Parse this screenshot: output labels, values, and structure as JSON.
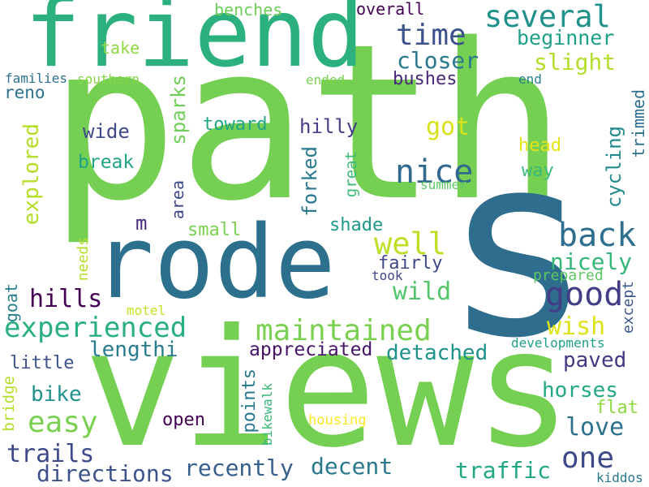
{
  "words": {
    "path": {
      "text": "path",
      "color": "#74cf52"
    },
    "views": {
      "text": "views",
      "color": "#74cf52"
    },
    "friend": {
      "text": "friend",
      "color": "#2cb17e"
    },
    "s": {
      "text": "s",
      "color": "#2e6d8e"
    },
    "rode": {
      "text": "rode",
      "color": "#2d708e"
    },
    "several": {
      "text": "several",
      "color": "#21918c"
    },
    "time": {
      "text": "time",
      "color": "#3b528b"
    },
    "beginner": {
      "text": "beginner",
      "color": "#1fa088"
    },
    "closer": {
      "text": "closer",
      "color": "#2a788e"
    },
    "slight": {
      "text": "slight",
      "color": "#b5de2b"
    },
    "bushes": {
      "text": "bushes",
      "color": "#482878"
    },
    "nice": {
      "text": "nice",
      "color": "#31688e"
    },
    "back": {
      "text": "back",
      "color": "#2e6e8e"
    },
    "good": {
      "text": "good",
      "color": "#433e85"
    },
    "well": {
      "text": "well",
      "color": "#bddf26"
    },
    "maintained": {
      "text": "maintained",
      "color": "#7ad151"
    },
    "experienced": {
      "text": "experienced",
      "color": "#2ab07f"
    },
    "easy": {
      "text": "easy",
      "color": "#7ad151"
    },
    "trails": {
      "text": "trails",
      "color": "#3e4989"
    },
    "directions": {
      "text": "directions",
      "color": "#3b528b"
    },
    "recently": {
      "text": "recently",
      "color": "#355f8d"
    },
    "decent": {
      "text": "decent",
      "color": "#2a788e"
    },
    "traffic": {
      "text": "traffic",
      "color": "#22a785"
    },
    "one": {
      "text": "one",
      "color": "#3e4989"
    },
    "love": {
      "text": "love",
      "color": "#2c728e"
    },
    "paved": {
      "text": "paved",
      "color": "#453781"
    },
    "detached": {
      "text": "detached",
      "color": "#20928c"
    },
    "wish": {
      "text": "wish",
      "color": "#dde318"
    },
    "nicely": {
      "text": "nicely",
      "color": "#35b779"
    },
    "wild": {
      "text": "wild",
      "color": "#52c569"
    },
    "fairly": {
      "text": "fairly",
      "color": "#3e4989"
    },
    "took": {
      "text": "took",
      "color": "#404688"
    },
    "prepared": {
      "text": "prepared",
      "color": "#5ec962"
    },
    "horses": {
      "text": "horses",
      "color": "#22a884"
    },
    "flat": {
      "text": "flat",
      "color": "#8fd744"
    },
    "bike": {
      "text": "bike",
      "color": "#21918c"
    },
    "hills": {
      "text": "hills",
      "color": "#440154"
    },
    "lengthi": {
      "text": "lengthi",
      "color": "#287c8e"
    },
    "appreciated": {
      "text": "appreciated",
      "color": "#481467"
    },
    "open": {
      "text": "open",
      "color": "#440154"
    },
    "little": {
      "text": "little",
      "color": "#3b528b"
    },
    "hilly": {
      "text": "hilly",
      "color": "#433e85"
    },
    "toward": {
      "text": "toward",
      "color": "#21a585"
    },
    "wide": {
      "text": "wide",
      "color": "#3e4a89"
    },
    "break": {
      "text": "break",
      "color": "#20a386"
    },
    "got": {
      "text": "got",
      "color": "#d8e219"
    },
    "head": {
      "text": "head",
      "color": "#e5e419"
    },
    "way": {
      "text": "way",
      "color": "#3aba76"
    },
    "shade": {
      "text": "shade",
      "color": "#1f998a"
    },
    "small": {
      "text": "small",
      "color": "#7ad151"
    },
    "m": {
      "text": "m",
      "color": "#472c7a"
    },
    "overall": {
      "text": "overall",
      "color": "#440154"
    },
    "benches": {
      "text": "benches",
      "color": "#6ccd5a"
    },
    "take": {
      "text": "take",
      "color": "#8fd744"
    },
    "families": {
      "text": "families",
      "color": "#2d708e"
    },
    "southern": {
      "text": "southern",
      "color": "#86d549"
    },
    "reno": {
      "text": "reno",
      "color": "#2c728e"
    },
    "ended": {
      "text": "ended",
      "color": "#7ad151"
    },
    "end": {
      "text": "end",
      "color": "#26828e"
    },
    "summer": {
      "text": "summer",
      "color": "#5ec962"
    },
    "motel": {
      "text": "motel",
      "color": "#c8e020"
    },
    "developments": {
      "text": "developments",
      "color": "#1fa088"
    },
    "housing": {
      "text": "housing",
      "color": "#fde725"
    },
    "kiddos": {
      "text": "kiddos",
      "color": "#2a788e"
    },
    "explored": {
      "text": "explored",
      "color": "#b5de2b"
    },
    "area": {
      "text": "area",
      "color": "#3e4989"
    },
    "sparks": {
      "text": "sparks",
      "color": "#6ece58"
    },
    "forked": {
      "text": "forked",
      "color": "#2a788e"
    },
    "great": {
      "text": "great",
      "color": "#3aba76"
    },
    "cycling": {
      "text": "cycling",
      "color": "#238a8d"
    },
    "trimmed": {
      "text": "trimmed",
      "color": "#2d708e"
    },
    "needs": {
      "text": "needs",
      "color": "#b5de2b"
    },
    "goat": {
      "text": "goat",
      "color": "#287d8e"
    },
    "bridge": {
      "text": "bridge",
      "color": "#b5de2b"
    },
    "points": {
      "text": "points",
      "color": "#2a788e"
    },
    "bikewalk": {
      "text": "bikewalk",
      "color": "#37b878"
    },
    "except": {
      "text": "except",
      "color": "#39568c"
    }
  }
}
